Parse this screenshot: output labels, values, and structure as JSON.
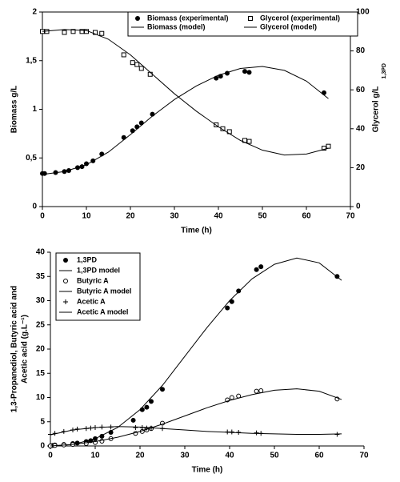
{
  "chart_data": [
    {
      "type": "scatter",
      "xlabel": "Time (h)",
      "ylabel": "Biomass g/L",
      "y2label": "Glycerol g/L",
      "y2label_sub": "1,3PD",
      "xlim": [
        0,
        70
      ],
      "xticks": [
        0,
        10,
        20,
        30,
        40,
        50,
        60,
        70
      ],
      "ylim": [
        0,
        2
      ],
      "yticks": [
        0,
        {
          "value": 0.5,
          "label": "0,5"
        },
        1,
        {
          "value": 1.5,
          "label": "1,5"
        },
        2
      ],
      "y2lim": [
        0,
        100
      ],
      "y2ticks": [
        0,
        20,
        40,
        60,
        80,
        100
      ],
      "legend": "upper right",
      "grid": false,
      "series": [
        {
          "name": "Biomass (experimental)",
          "color": "#000000",
          "marker": "filled-circle",
          "x": [
            0,
            0.5,
            3,
            5,
            6,
            8,
            9,
            10,
            11.5,
            13.5,
            18.5,
            20.5,
            21.5,
            22.5,
            25,
            39.5,
            40.5,
            42,
            46,
            47,
            64
          ],
          "values": [
            0.34,
            0.34,
            0.35,
            0.36,
            0.37,
            0.4,
            0.41,
            0.44,
            0.47,
            0.54,
            0.71,
            0.78,
            0.82,
            0.86,
            0.95,
            1.32,
            1.34,
            1.37,
            1.39,
            1.38,
            1.17
          ]
        },
        {
          "name": "Biomass (model)",
          "color": "#000000",
          "marker": "line",
          "x": [
            0,
            5,
            10,
            15,
            20,
            25,
            30,
            35,
            40,
            45,
            50,
            55,
            60,
            65
          ],
          "values": [
            0.33,
            0.36,
            0.43,
            0.56,
            0.74,
            0.93,
            1.1,
            1.24,
            1.35,
            1.42,
            1.44,
            1.4,
            1.29,
            1.11
          ]
        },
        {
          "name": "Glycerol (experimental)",
          "color": "#000000",
          "marker": "open-square",
          "axis": "y2",
          "x": [
            0,
            1,
            5,
            7,
            9,
            10,
            12,
            13.5,
            18.5,
            20.5,
            21.5,
            22.5,
            24.5,
            39.5,
            41,
            42.5,
            46,
            47,
            64,
            65
          ],
          "values": [
            90,
            90,
            89.5,
            90,
            90,
            90,
            89.5,
            89,
            78,
            74,
            73,
            71,
            68,
            42,
            40,
            38.5,
            34,
            33.5,
            30,
            31
          ]
        },
        {
          "name": "Glycerol (model)",
          "color": "#000000",
          "marker": "line",
          "axis": "y2",
          "x": [
            0,
            5,
            10,
            15,
            20,
            25,
            30,
            35,
            40,
            45,
            50,
            55,
            60,
            65
          ],
          "values": [
            90,
            91,
            90.5,
            86,
            78,
            68,
            58,
            49,
            41,
            34,
            29,
            26.5,
            27,
            30
          ]
        }
      ]
    },
    {
      "type": "scatter",
      "xlabel": "Time (h)",
      "ylabel": [
        "1,3-Propanediol, Butyric acid and",
        "Acetic acid (g.L⁻¹)"
      ],
      "xlim": [
        0,
        70
      ],
      "xticks": [
        0,
        10,
        20,
        30,
        40,
        50,
        60,
        70
      ],
      "ylim": [
        0,
        40
      ],
      "yticks": [
        0,
        5,
        10,
        15,
        20,
        25,
        30,
        35,
        40
      ],
      "legend": "upper left",
      "grid": false,
      "series": [
        {
          "name": "1,3PD",
          "color": "#000000",
          "marker": "filled-circle",
          "x": [
            0,
            0.5,
            1,
            3,
            5,
            6,
            8,
            9,
            10,
            11.5,
            13.5,
            18.5,
            20.5,
            21.5,
            22.5,
            25,
            39.5,
            40.5,
            42,
            46,
            47,
            64
          ],
          "values": [
            0,
            0.1,
            0.2,
            0.3,
            0.5,
            0.6,
            0.9,
            1.1,
            1.5,
            2,
            2.8,
            5.3,
            7.5,
            8,
            9.2,
            11.7,
            28.5,
            29.8,
            32,
            36.4,
            37,
            35
          ]
        },
        {
          "name": "1,3PD model",
          "color": "#000000",
          "marker": "line",
          "x": [
            0,
            5,
            10,
            15,
            20,
            25,
            30,
            35,
            40,
            45,
            50,
            55,
            60,
            65
          ],
          "values": [
            0,
            0.3,
            1.5,
            3.8,
            7.5,
            12.5,
            18.5,
            24.5,
            30,
            34.5,
            37.5,
            38.8,
            37.8,
            34.2
          ]
        },
        {
          "name": "Butyric A",
          "color": "#000000",
          "marker": "open-circle",
          "x": [
            0,
            1,
            3,
            5,
            8,
            10,
            11.5,
            13.5,
            19,
            20.5,
            21.5,
            22.5,
            25,
            39.5,
            40.5,
            42,
            46,
            47,
            64
          ],
          "values": [
            0,
            0.1,
            0.2,
            0.3,
            0.5,
            0.7,
            1,
            1.5,
            2.6,
            3,
            3.3,
            3.6,
            4.7,
            9.5,
            10,
            10.3,
            11.3,
            11.4,
            9.7
          ]
        },
        {
          "name": "Butyric A model",
          "color": "#000000",
          "marker": "line",
          "x": [
            0,
            5,
            10,
            15,
            20,
            25,
            30,
            35,
            40,
            45,
            50,
            55,
            60,
            65
          ],
          "values": [
            0,
            0.3,
            0.9,
            1.8,
            3,
            4.5,
            6.2,
            7.9,
            9.4,
            10.6,
            11.5,
            11.8,
            11.3,
            9.6
          ]
        },
        {
          "name": "Acetic A",
          "color": "#000000",
          "marker": "plus",
          "x": [
            0,
            1,
            3,
            5,
            6,
            8,
            9,
            10,
            11.5,
            13.5,
            19,
            20.5,
            21.5,
            22.5,
            25,
            39.5,
            40.5,
            42,
            46,
            47,
            64
          ],
          "values": [
            2.4,
            2.6,
            3,
            3.3,
            3.5,
            3.6,
            3.7,
            3.8,
            3.9,
            3.9,
            3.8,
            3.8,
            3.7,
            3.7,
            3.6,
            2.9,
            2.9,
            2.8,
            2.7,
            2.6,
            2.4
          ]
        },
        {
          "name": "Acetic A model",
          "color": "#000000",
          "marker": "line",
          "x": [
            0,
            5,
            10,
            15,
            20,
            25,
            30,
            35,
            40,
            45,
            50,
            55,
            60,
            65
          ],
          "values": [
            2.3,
            3.3,
            3.8,
            4,
            3.9,
            3.6,
            3.3,
            3,
            2.8,
            2.6,
            2.5,
            2.4,
            2.4,
            2.5
          ]
        }
      ]
    }
  ]
}
